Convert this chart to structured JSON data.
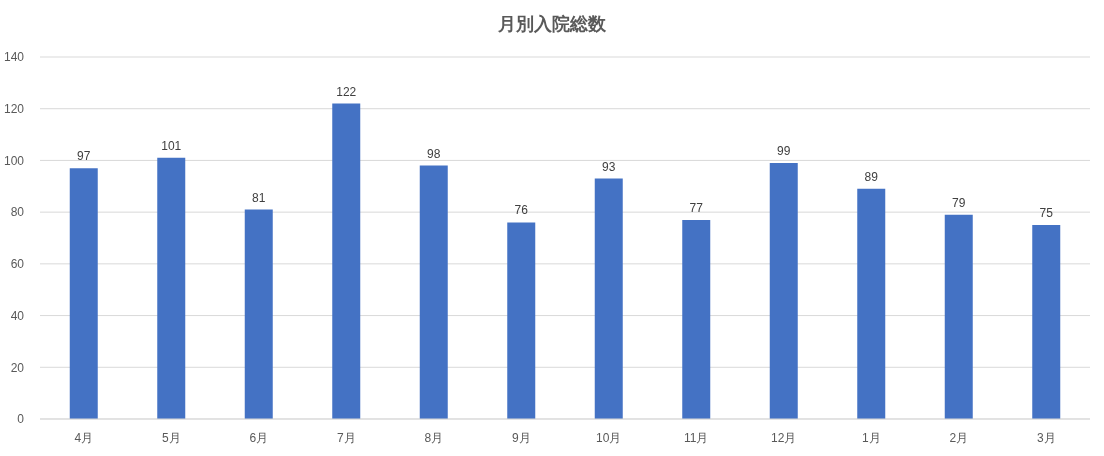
{
  "chart_data": {
    "type": "bar",
    "title": "月別入院総数",
    "categories": [
      "4月",
      "5月",
      "6月",
      "7月",
      "8月",
      "9月",
      "10月",
      "11月",
      "12月",
      "1月",
      "2月",
      "3月"
    ],
    "values": [
      97,
      101,
      81,
      122,
      98,
      76,
      93,
      77,
      99,
      89,
      79,
      75
    ],
    "color": "#4472c4",
    "ylim": [
      0,
      140
    ],
    "yticks": [
      0,
      20,
      40,
      60,
      80,
      100,
      120,
      140
    ],
    "grid": "y",
    "data_labels": true
  }
}
